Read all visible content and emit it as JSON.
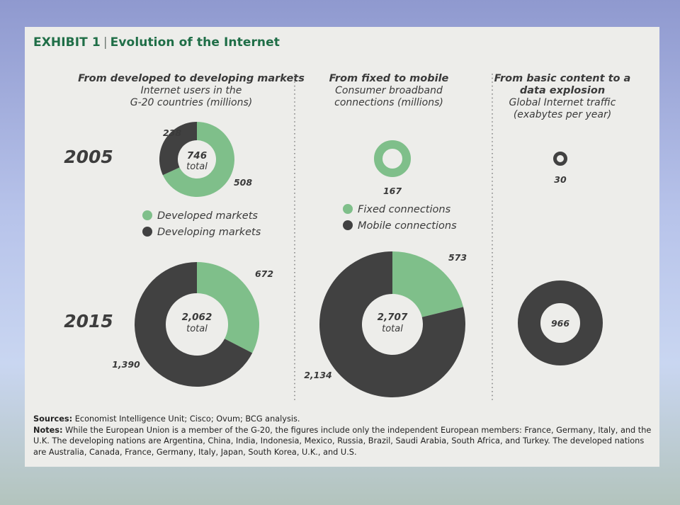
{
  "exhibit": {
    "label": "EXHIBIT 1",
    "separator": "|",
    "title": "Evolution of the Internet"
  },
  "colors": {
    "developed_or_fixed": "#7fbf8a",
    "developing_or_mobile": "#414141",
    "traffic": "#414141",
    "panel": "#ededea"
  },
  "columns": [
    {
      "heading": [
        "From developed to developing markets"
      ],
      "subtitle": [
        "Internet users in the",
        "G-20 countries (millions)"
      ]
    },
    {
      "heading": [
        "From fixed to mobile"
      ],
      "subtitle": [
        "Consumer broadband",
        "connections (millions)"
      ]
    },
    {
      "heading": [
        "From basic content to a",
        "data explosion"
      ],
      "subtitle": [
        "Global Internet traffic",
        "(exabytes per year)"
      ]
    }
  ],
  "years": [
    "2005",
    "2015"
  ],
  "legends": [
    {
      "items": [
        {
          "label": "Developed markets",
          "color": "#7fbf8a"
        },
        {
          "label": "Developing markets",
          "color": "#414141"
        }
      ]
    },
    {
      "items": [
        {
          "label": "Fixed connections",
          "color": "#7fbf8a"
        },
        {
          "label": "Mobile connections",
          "color": "#414141"
        }
      ]
    }
  ],
  "chart_data": [
    {
      "type": "pie",
      "title": "From developed to developing markets",
      "subtitle": "Internet users in the G-20 countries (millions)",
      "categories": [
        "Developed markets",
        "Developing markets"
      ],
      "series": [
        {
          "name": "2005",
          "values": [
            508,
            238
          ],
          "value_labels": [
            "508",
            "238"
          ],
          "total": 746,
          "total_label": "746",
          "total_word": "total"
        },
        {
          "name": "2015",
          "values": [
            672,
            1390
          ],
          "value_labels": [
            "672",
            "1,390"
          ],
          "total": 2062,
          "total_label": "2,062",
          "total_word": "total"
        }
      ]
    },
    {
      "type": "pie",
      "title": "From fixed to mobile",
      "subtitle": "Consumer broadband connections (millions)",
      "categories": [
        "Fixed connections",
        "Mobile connections"
      ],
      "series": [
        {
          "name": "2005",
          "values": [
            167,
            0
          ],
          "value_labels": [
            "167",
            ""
          ],
          "total": 167
        },
        {
          "name": "2015",
          "values": [
            573,
            2134
          ],
          "value_labels": [
            "573",
            "2,134"
          ],
          "total": 2707,
          "total_label": "2,707",
          "total_word": "total"
        }
      ]
    },
    {
      "type": "pie",
      "title": "From basic content to a data explosion",
      "subtitle": "Global Internet traffic (exabytes per year)",
      "categories": [
        "Global Internet traffic"
      ],
      "series": [
        {
          "name": "2005",
          "values": [
            30
          ],
          "value_labels": [
            "30"
          ]
        },
        {
          "name": "2015",
          "values": [
            966
          ],
          "value_labels": [
            "966"
          ]
        }
      ]
    }
  ],
  "footer": {
    "sources_label": "Sources:",
    "sources_text": "Economist Intelligence Unit; Cisco; Ovum; BCG analysis.",
    "notes_label": "Notes:",
    "notes_text": "While the European Union is a member of the G-20, the figures include only the independent European members: France, Germany, Italy, and the U.K. The developing nations are Argentina, China, India, Indonesia, Mexico, Russia, Brazil, Saudi Arabia, South Africa, and Turkey. The developed nations are Australia, Canada, France, Germany, Italy, Japan, South Korea, U.K., and U.S."
  }
}
